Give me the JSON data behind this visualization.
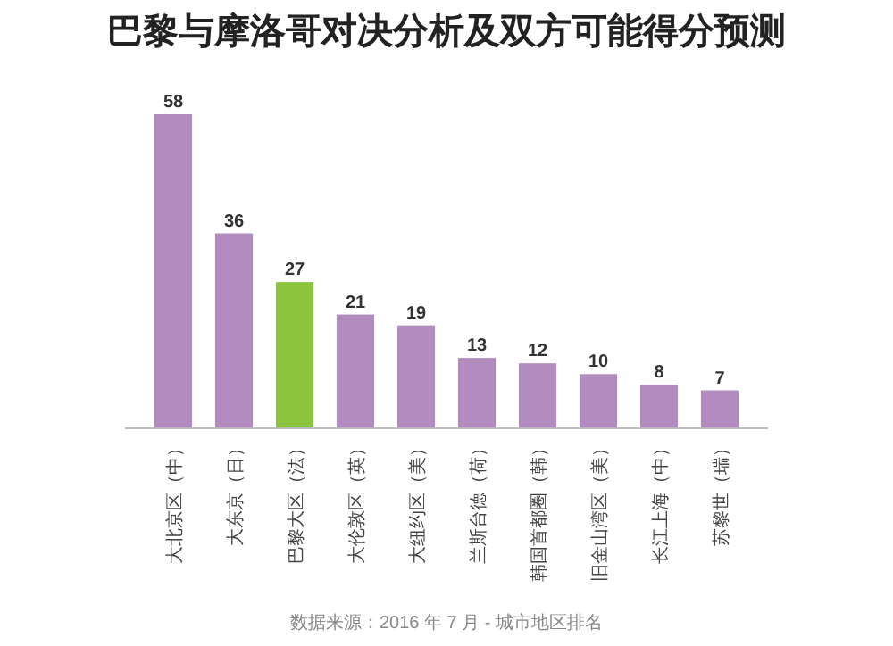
{
  "chart_data": {
    "type": "bar",
    "title": "巴黎与摩洛哥对决分析及双方可能得分预测",
    "categories": [
      "大北京区（中）",
      "大东京（日）",
      "巴黎大区（法）",
      "大伦敦区（英）",
      "大纽约区（美）",
      "兰斯台德（荷）",
      "韩国首都圈（韩）",
      "旧金山湾区（美）",
      "长江上海（中）",
      "苏黎世（瑞）"
    ],
    "values": [
      58,
      36,
      27,
      21,
      19,
      13,
      12,
      10,
      8,
      7
    ],
    "colors": [
      "#b28bbf",
      "#b28bbf",
      "#8cc33f",
      "#b28bbf",
      "#b28bbf",
      "#b28bbf",
      "#b28bbf",
      "#b28bbf",
      "#b28bbf",
      "#b28bbf"
    ],
    "data_labels": true,
    "annotations": [
      "数据来源：2016 年 7 月 - 城市地区排名"
    ]
  }
}
